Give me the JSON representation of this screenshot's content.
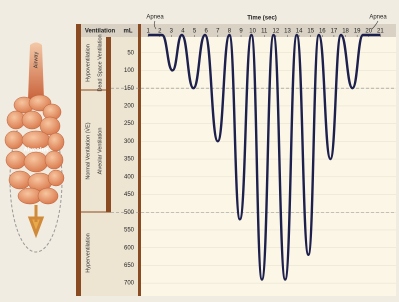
{
  "chart_data": {
    "type": "line",
    "title": "Time (sec)",
    "y_label": "mL",
    "header": "Ventilation",
    "annotations": [
      "Apnea",
      "Apnea"
    ],
    "illustration_labels": [
      "Airway",
      "Alveolus"
    ],
    "bands_outer": [
      "Hypoventilation",
      "Normal Ventilation (V̇E)",
      "Hyperventilation"
    ],
    "bands_inner": [
      "Dead Space Ventilation",
      "Alveolar Ventilation"
    ],
    "x": [
      1,
      2.2,
      3.1,
      3.9,
      4.9,
      5.9,
      7.0,
      8.0,
      8.9,
      9.9,
      10.8,
      11.8,
      12.8,
      13.8,
      14.8,
      15.7,
      16.7,
      17.6,
      18.6,
      19.5,
      21
    ],
    "series": [
      {
        "color": "#1d1f4d",
        "values": [
          0,
          0,
          100,
          0,
          150,
          0,
          300,
          0,
          520,
          0,
          690,
          0,
          690,
          0,
          620,
          0,
          350,
          0,
          150,
          0,
          0
        ]
      }
    ],
    "xlim": [
      0.3,
      22
    ],
    "xticks": [
      1,
      2,
      3,
      4,
      5,
      6,
      7,
      8,
      9,
      10,
      11,
      12,
      13,
      14,
      15,
      16,
      17,
      18,
      19,
      20,
      21
    ],
    "ylim": [
      0,
      725
    ],
    "yticks": [
      50,
      100,
      150,
      200,
      250,
      300,
      350,
      400,
      450,
      500,
      550,
      600,
      650,
      700
    ],
    "y_inverted": true,
    "reference_lines": [
      150,
      500
    ],
    "grid": true
  }
}
